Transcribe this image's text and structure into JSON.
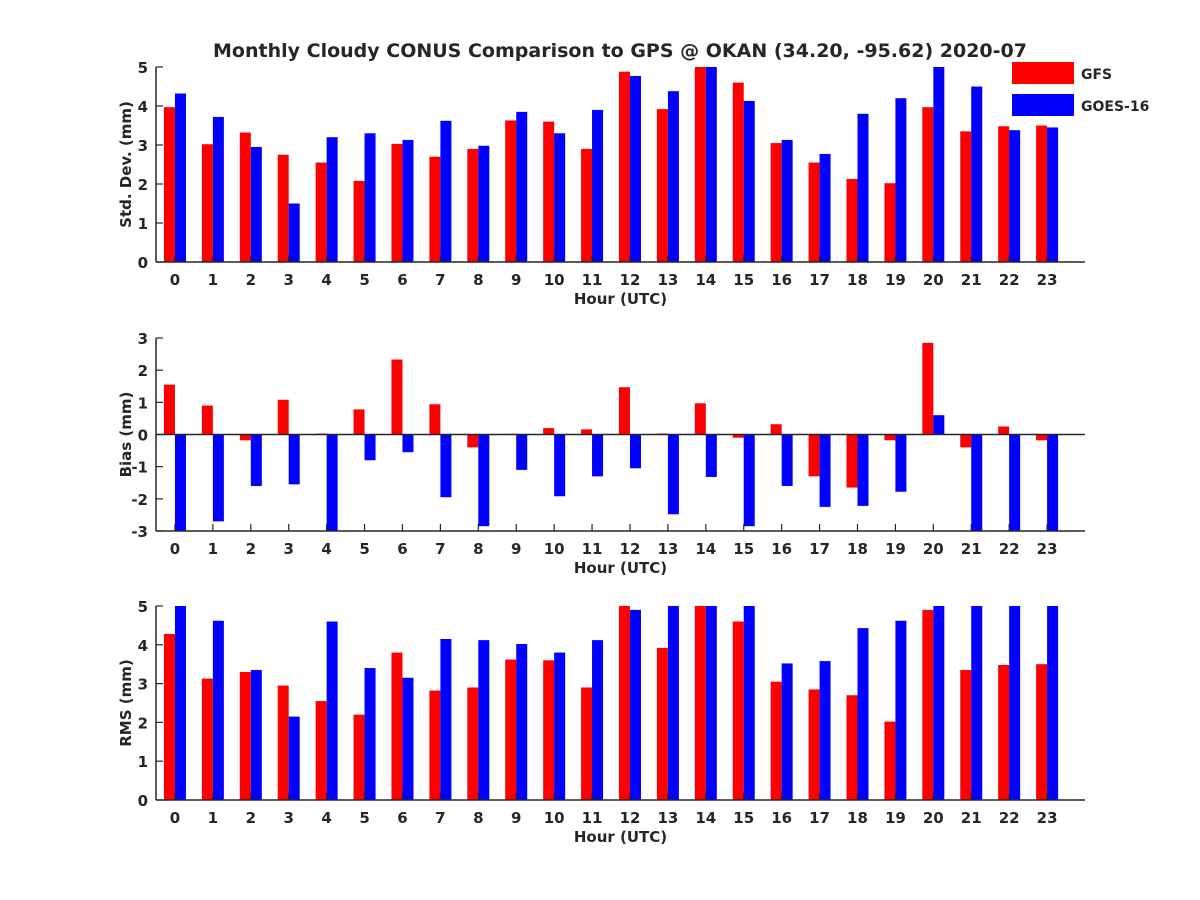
{
  "title": "Monthly Cloudy CONUS Comparison to GPS @ OKAN (34.20, -95.62) 2020-07",
  "legend": {
    "placement": "top-right",
    "items": [
      {
        "label": "GFS",
        "color": "#ff0000"
      },
      {
        "label": "GOES-16",
        "color": "#0000ff"
      }
    ]
  },
  "chart_data": [
    {
      "type": "bar",
      "xlabel": "Hour (UTC)",
      "ylabel": "Std. Dev. (mm)",
      "ylim": [
        0,
        5
      ],
      "yticks": [
        0,
        1,
        2,
        3,
        4,
        5
      ],
      "categories": [
        "0",
        "1",
        "2",
        "3",
        "4",
        "5",
        "6",
        "7",
        "8",
        "9",
        "10",
        "11",
        "12",
        "13",
        "14",
        "15",
        "16",
        "17",
        "18",
        "19",
        "20",
        "21",
        "22",
        "23"
      ],
      "series": [
        {
          "name": "GFS",
          "color": "#ff0000",
          "values": [
            3.97,
            3.02,
            3.32,
            2.75,
            2.55,
            2.08,
            3.03,
            2.7,
            2.9,
            3.63,
            3.6,
            2.9,
            4.88,
            3.92,
            5.0,
            4.6,
            3.05,
            2.55,
            2.13,
            2.02,
            3.97,
            3.35,
            3.48,
            3.5
          ]
        },
        {
          "name": "GOES-16",
          "color": "#0000ff",
          "values": [
            4.32,
            3.72,
            2.95,
            1.5,
            3.2,
            3.3,
            3.13,
            3.62,
            2.98,
            3.85,
            3.3,
            3.9,
            4.77,
            4.38,
            5.0,
            4.13,
            3.13,
            2.77,
            3.8,
            4.2,
            5.0,
            4.5,
            3.38,
            3.45
          ]
        }
      ]
    },
    {
      "type": "bar",
      "xlabel": "Hour (UTC)",
      "ylabel": "Bias (mm)",
      "ylim": [
        -3,
        3
      ],
      "yticks": [
        -3,
        -2,
        -1,
        0,
        1,
        2,
        3
      ],
      "categories": [
        "0",
        "1",
        "2",
        "3",
        "4",
        "5",
        "6",
        "7",
        "8",
        "9",
        "10",
        "11",
        "12",
        "13",
        "14",
        "15",
        "16",
        "17",
        "18",
        "19",
        "20",
        "21",
        "22",
        "23"
      ],
      "series": [
        {
          "name": "GFS",
          "color": "#ff0000",
          "values": [
            1.55,
            0.9,
            -0.18,
            1.08,
            0.03,
            0.78,
            2.33,
            0.94,
            -0.4,
            0.02,
            0.2,
            0.16,
            1.47,
            0.03,
            0.97,
            -0.1,
            0.32,
            -1.3,
            -1.65,
            -0.18,
            2.85,
            -0.4,
            0.25,
            -0.18
          ]
        },
        {
          "name": "GOES-16",
          "color": "#0000ff",
          "values": [
            -3.0,
            -2.7,
            -1.6,
            -1.55,
            -3.0,
            -0.8,
            -0.55,
            -1.95,
            -2.85,
            -1.1,
            -1.92,
            -1.3,
            -1.05,
            -2.48,
            -1.32,
            -2.85,
            -1.6,
            -2.25,
            -2.22,
            -1.78,
            0.6,
            -3.0,
            -3.0,
            -3.0
          ]
        }
      ]
    },
    {
      "type": "bar",
      "xlabel": "Hour (UTC)",
      "ylabel": "RMS (mm)",
      "ylim": [
        0,
        5
      ],
      "yticks": [
        0,
        1,
        2,
        3,
        4,
        5
      ],
      "categories": [
        "0",
        "1",
        "2",
        "3",
        "4",
        "5",
        "6",
        "7",
        "8",
        "9",
        "10",
        "11",
        "12",
        "13",
        "14",
        "15",
        "16",
        "17",
        "18",
        "19",
        "20",
        "21",
        "22",
        "23"
      ],
      "series": [
        {
          "name": "GFS",
          "color": "#ff0000",
          "values": [
            4.28,
            3.13,
            3.3,
            2.95,
            2.55,
            2.2,
            3.8,
            2.82,
            2.9,
            3.62,
            3.6,
            2.9,
            5.0,
            3.92,
            5.0,
            4.6,
            3.05,
            2.85,
            2.7,
            2.02,
            4.9,
            3.35,
            3.48,
            3.5
          ]
        },
        {
          "name": "GOES-16",
          "color": "#0000ff",
          "values": [
            5.0,
            4.62,
            3.35,
            2.15,
            4.6,
            3.4,
            3.15,
            4.15,
            4.12,
            4.02,
            3.8,
            4.12,
            4.9,
            5.0,
            5.0,
            5.0,
            3.52,
            3.58,
            4.43,
            4.62,
            5.0,
            5.0,
            5.0,
            5.0
          ]
        }
      ]
    }
  ]
}
